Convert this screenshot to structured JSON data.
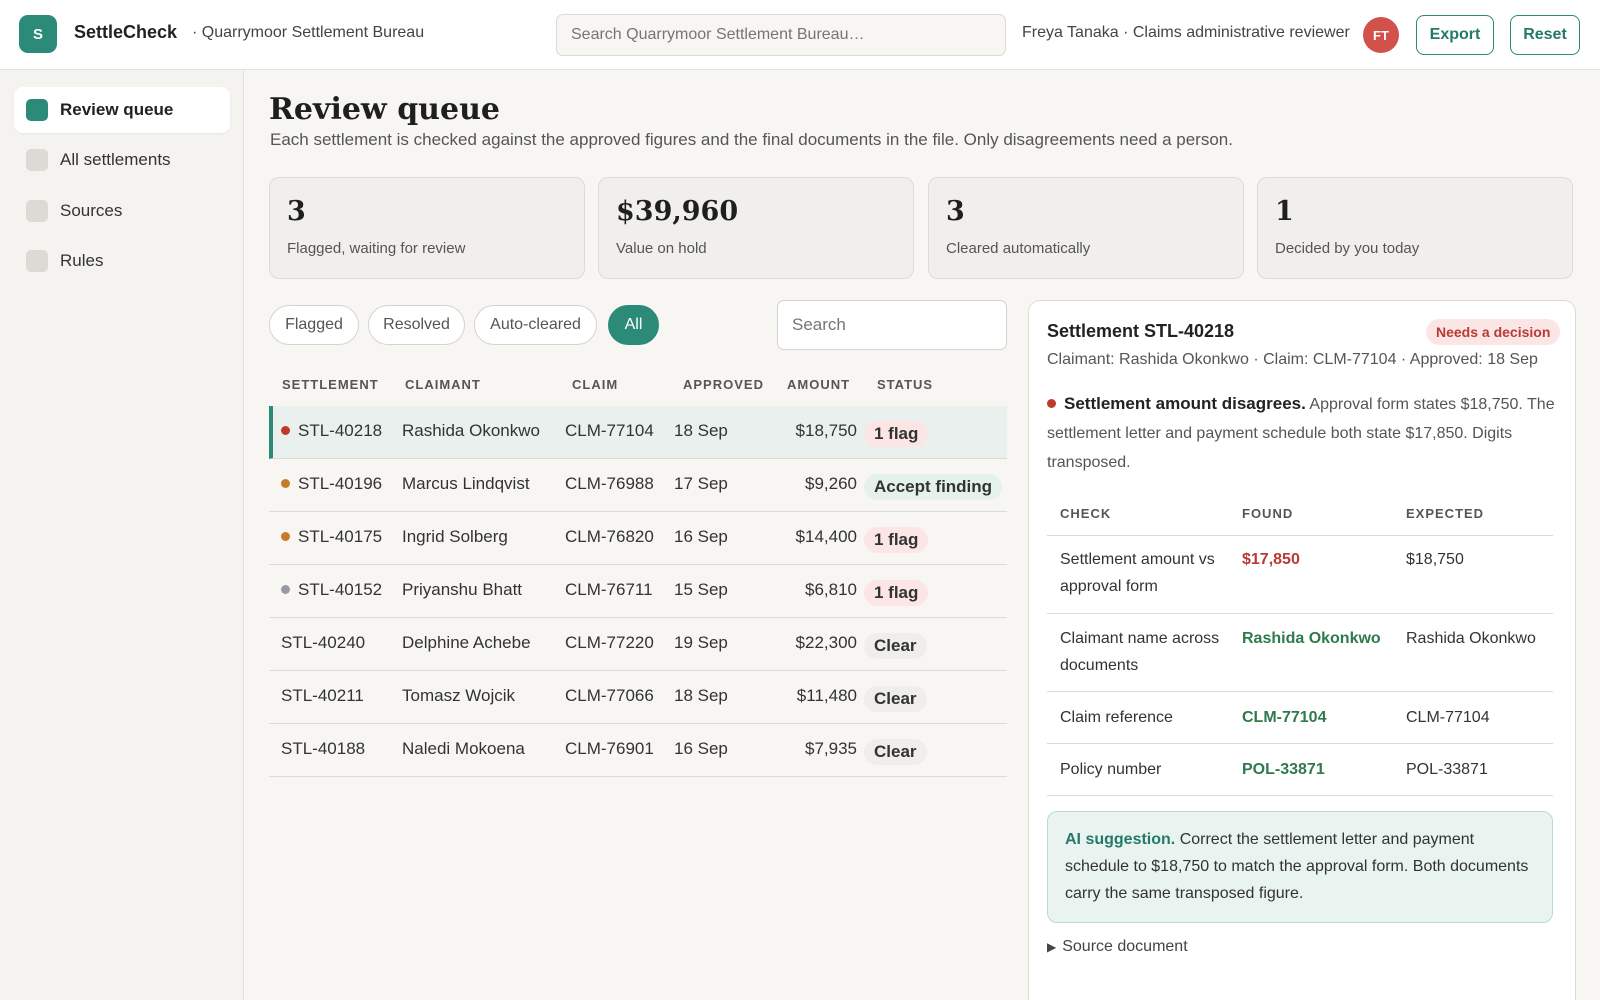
{
  "topbar": {
    "logo_letter": "S",
    "app_name": "SettleCheck",
    "bureau": "· Quarrymoor Settlement Bureau",
    "search_placeholder": "Search Quarrymoor Settlement Bureau…",
    "user": "Freya Tanaka · Claims administrative reviewer",
    "avatar_initials": "FT",
    "export_label": "Export",
    "reset_label": "Reset"
  },
  "sidebar": {
    "items": [
      {
        "label": "Review queue"
      },
      {
        "label": "All settlements"
      },
      {
        "label": "Sources"
      },
      {
        "label": "Rules"
      }
    ]
  },
  "page": {
    "title": "Review queue",
    "subtitle": "Each settlement is checked against the approved figures and the final documents in the file. Only disagreements need a person."
  },
  "stats": [
    {
      "value": "3",
      "label": "Flagged, waiting for review"
    },
    {
      "value": "$39,960",
      "label": "Value on hold"
    },
    {
      "value": "3",
      "label": "Cleared automatically"
    },
    {
      "value": "1",
      "label": "Decided by you today"
    }
  ],
  "filters": {
    "pills": [
      "Flagged",
      "Resolved",
      "Auto-cleared",
      "All"
    ],
    "active": "All",
    "search_placeholder": "Search"
  },
  "table": {
    "columns": [
      "SETTLEMENT",
      "CLAIMANT",
      "CLAIM",
      "APPROVED",
      "AMOUNT",
      "STATUS"
    ],
    "rows": [
      {
        "id": "STL-40218",
        "claimant": "Rashida Okonkwo",
        "claim": "CLM-77104",
        "approved": "18 Sep",
        "amount": "$18,750",
        "status": "1 flag",
        "dot": "#c0392b"
      },
      {
        "id": "STL-40196",
        "claimant": "Marcus Lindqvist",
        "claim": "CLM-76988",
        "approved": "17 Sep",
        "amount": "$9,260",
        "status": "Accept finding",
        "dot": "#c77a2a"
      },
      {
        "id": "STL-40175",
        "claimant": "Ingrid Solberg",
        "claim": "CLM-76820",
        "approved": "16 Sep",
        "amount": "$14,400",
        "status": "1 flag",
        "dot": "#c77a2a"
      },
      {
        "id": "STL-40152",
        "claimant": "Priyanshu Bhatt",
        "claim": "CLM-76711",
        "approved": "15 Sep",
        "amount": "$6,810",
        "status": "1 flag",
        "dot": "#9a9aa3"
      },
      {
        "id": "STL-40240",
        "claimant": "Delphine Achebe",
        "claim": "CLM-77220",
        "approved": "19 Sep",
        "amount": "$22,300",
        "status": "Clear",
        "dot": ""
      },
      {
        "id": "STL-40211",
        "claimant": "Tomasz Wojcik",
        "claim": "CLM-77066",
        "approved": "18 Sep",
        "amount": "$11,480",
        "status": "Clear",
        "dot": ""
      },
      {
        "id": "STL-40188",
        "claimant": "Naledi Mokoena",
        "claim": "CLM-76901",
        "approved": "16 Sep",
        "amount": "$7,935",
        "status": "Clear",
        "dot": ""
      }
    ]
  },
  "detail": {
    "title": "Settlement STL-40218",
    "badge": "Needs a decision",
    "meta": "Claimant: Rashida Okonkwo · Claim: CLM-77104 · Approved: 18 Sep",
    "finding_bold": "Settlement amount disagrees.",
    "finding_text": "Approval form states $18,750. The settlement letter and payment schedule both state $17,850. Digits transposed.",
    "check_columns": [
      "CHECK",
      "FOUND",
      "EXPECTED"
    ],
    "checks": [
      {
        "check": "Settlement amount vs approval form",
        "found": "$17,850",
        "expected": "$18,750",
        "found_color": "#b83a35"
      },
      {
        "check": "Claimant name across documents",
        "found": "Rashida Okonkwo",
        "expected": "Rashida Okonkwo",
        "found_color": "#2f7a4c"
      },
      {
        "check": "Claim reference",
        "found": "CLM-77104",
        "expected": "CLM-77104",
        "found_color": "#2f7a4c"
      },
      {
        "check": "Policy number",
        "found": "POL-33871",
        "expected": "POL-33871",
        "found_color": "#2f7a4c"
      }
    ],
    "ai_label": "AI suggestion.",
    "ai_text": "Correct the settlement letter and payment schedule to $18,750 to match the approval form. Both documents carry the same transposed figure.",
    "source_doc": "Source document"
  },
  "colors": {
    "accent": "#2b8a78",
    "flag": "#b83a35",
    "ok": "#2f7a4c"
  }
}
